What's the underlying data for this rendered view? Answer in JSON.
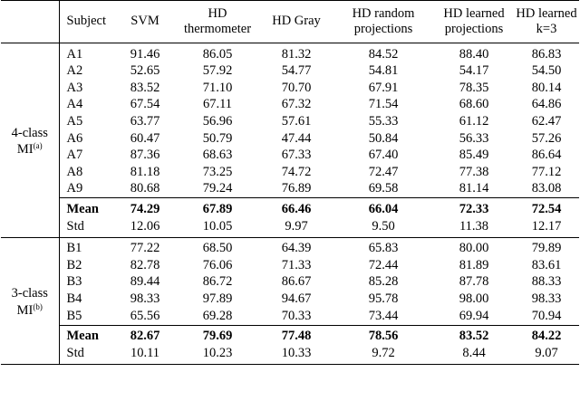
{
  "headers": {
    "subject": "Subject",
    "svm": "SVM",
    "hd_thermo": [
      "HD",
      "thermometer"
    ],
    "hd_gray": "HD Gray",
    "hd_random": [
      "HD random",
      "projections"
    ],
    "hd_learned": [
      "HD learned",
      "projections"
    ],
    "hd_learned_k3": [
      "HD learned",
      "k=3"
    ]
  },
  "groups": [
    {
      "label": "4-class",
      "label2": "MI",
      "sup": "(a)",
      "rows": [
        {
          "subject": "A1",
          "v": [
            "91.46",
            "86.05",
            "81.32",
            "84.52",
            "88.40",
            "86.83"
          ]
        },
        {
          "subject": "A2",
          "v": [
            "52.65",
            "57.92",
            "54.77",
            "54.81",
            "54.17",
            "54.50"
          ]
        },
        {
          "subject": "A3",
          "v": [
            "83.52",
            "71.10",
            "70.70",
            "67.91",
            "78.35",
            "80.14"
          ]
        },
        {
          "subject": "A4",
          "v": [
            "67.54",
            "67.11",
            "67.32",
            "71.54",
            "68.60",
            "64.86"
          ]
        },
        {
          "subject": "A5",
          "v": [
            "63.77",
            "56.96",
            "57.61",
            "55.33",
            "61.12",
            "62.47"
          ]
        },
        {
          "subject": "A6",
          "v": [
            "60.47",
            "50.79",
            "47.44",
            "50.84",
            "56.33",
            "57.26"
          ]
        },
        {
          "subject": "A7",
          "v": [
            "87.36",
            "68.63",
            "67.33",
            "67.40",
            "85.49",
            "86.64"
          ]
        },
        {
          "subject": "A8",
          "v": [
            "81.18",
            "73.25",
            "74.72",
            "72.47",
            "77.38",
            "77.12"
          ]
        },
        {
          "subject": "A9",
          "v": [
            "80.68",
            "79.24",
            "76.89",
            "69.58",
            "81.14",
            "83.08"
          ]
        }
      ],
      "mean": {
        "label": "Mean",
        "v": [
          "74.29",
          "67.89",
          "66.46",
          "66.04",
          "72.33",
          "72.54"
        ]
      },
      "std": {
        "label": "Std",
        "v": [
          "12.06",
          "10.05",
          "9.97",
          "9.50",
          "11.38",
          "12.17"
        ]
      }
    },
    {
      "label": "3-class",
      "label2": "MI",
      "sup": "(b)",
      "rows": [
        {
          "subject": "B1",
          "v": [
            "77.22",
            "68.50",
            "64.39",
            "65.83",
            "80.00",
            "79.89"
          ]
        },
        {
          "subject": "B2",
          "v": [
            "82.78",
            "76.06",
            "71.33",
            "72.44",
            "81.89",
            "83.61"
          ]
        },
        {
          "subject": "B3",
          "v": [
            "89.44",
            "86.72",
            "86.67",
            "85.28",
            "87.78",
            "88.33"
          ]
        },
        {
          "subject": "B4",
          "v": [
            "98.33",
            "97.89",
            "94.67",
            "95.78",
            "98.00",
            "98.33"
          ]
        },
        {
          "subject": "B5",
          "v": [
            "65.56",
            "69.28",
            "70.33",
            "73.44",
            "69.94",
            "70.94"
          ]
        }
      ],
      "mean": {
        "label": "Mean",
        "v": [
          "82.67",
          "79.69",
          "77.48",
          "78.56",
          "83.52",
          "84.22"
        ]
      },
      "std": {
        "label": "Std",
        "v": [
          "10.11",
          "10.23",
          "10.33",
          "9.72",
          "8.44",
          "9.07"
        ]
      }
    }
  ]
}
